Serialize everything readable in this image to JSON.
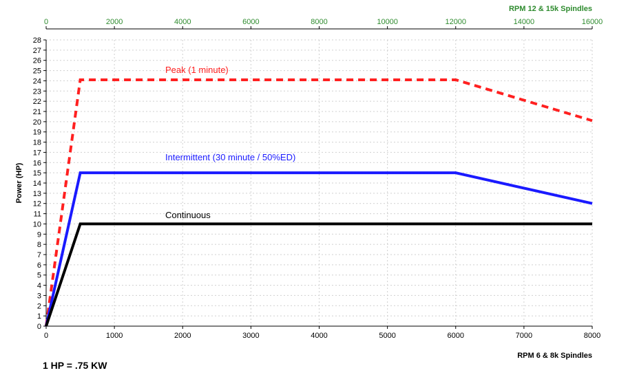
{
  "chart_data": {
    "type": "line",
    "x_bottom": {
      "label": "RPM 6 & 8k Spindles",
      "range": [
        0,
        8000
      ],
      "ticks": [
        0,
        1000,
        2000,
        3000,
        4000,
        5000,
        6000,
        7000,
        8000
      ]
    },
    "x_top": {
      "label": "RPM 12 & 15k Spindles",
      "range": [
        0,
        16000
      ],
      "ticks": [
        0,
        2000,
        4000,
        6000,
        8000,
        10000,
        12000,
        14000,
        16000
      ],
      "color": "#2e8b2e"
    },
    "y": {
      "label": "Power (HP)",
      "range": [
        0,
        28
      ],
      "ticks": [
        0,
        1,
        2,
        3,
        4,
        5,
        6,
        7,
        8,
        9,
        10,
        11,
        12,
        13,
        14,
        15,
        16,
        17,
        18,
        19,
        20,
        21,
        22,
        23,
        24,
        25,
        26,
        27,
        28
      ]
    },
    "grid": true,
    "series": [
      {
        "name": "Peak (1 minute)",
        "color": "#ff2020",
        "style": "dashed",
        "x": [
          0,
          500,
          6000,
          8000
        ],
        "y": [
          0,
          24.1,
          24.1,
          20.1
        ]
      },
      {
        "name": "Intermittent (30 minute / 50%ED)",
        "color": "#1a1aff",
        "style": "solid",
        "x": [
          0,
          500,
          6000,
          8000
        ],
        "y": [
          0,
          15,
          15,
          12
        ]
      },
      {
        "name": "Continuous",
        "color": "#000000",
        "style": "solid",
        "x": [
          0,
          500,
          8000
        ],
        "y": [
          0,
          10,
          10
        ]
      }
    ]
  },
  "footnote": "1 HP = .75 KW"
}
